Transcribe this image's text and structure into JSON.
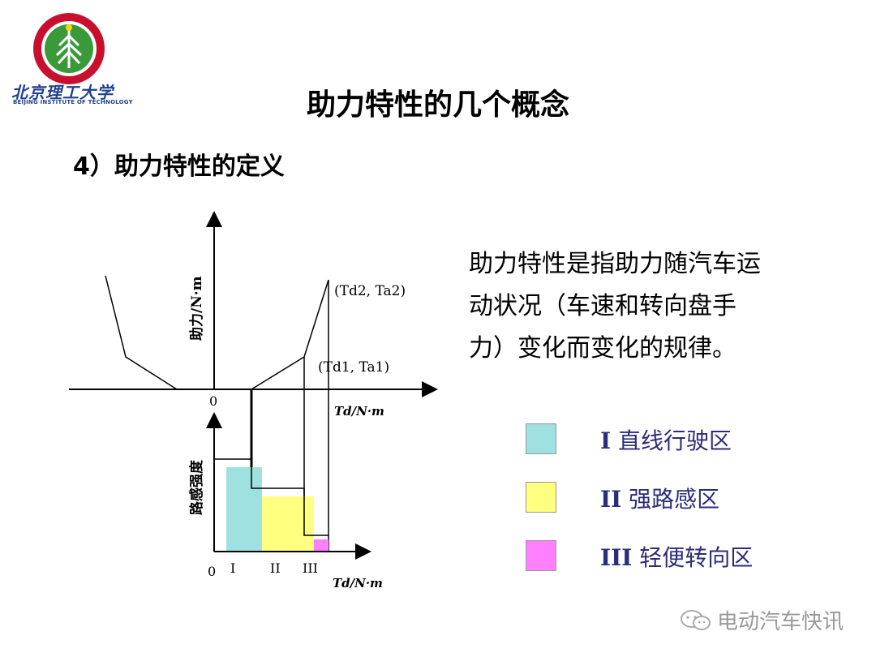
{
  "header": {
    "logo_name_cn": "北京理工大学",
    "logo_name_en": "BEIJING INSTITUTE OF TECHNOLOGY"
  },
  "title": "助力特性的几个概念",
  "subtitle": "4）助力特性的定义",
  "description_lines": [
    "助力特性是指助力随汽车运",
    "动状况（车速和转向盘手",
    "力）变化而变化的规律。"
  ],
  "diagram": {
    "upper_y_label": "助力/N·m",
    "upper_x_label": "Td/N·m",
    "lower_y_label": "路感强度",
    "lower_x_label": "Td/N·m",
    "origin_label": "0",
    "point_label_1": "(Td1, Ta1)",
    "point_label_2": "(Td2, Ta2)",
    "zone_label_1": "I",
    "zone_label_2": "II",
    "zone_label_3": "III"
  },
  "legend": [
    {
      "roman": "I",
      "label": "直线行驶区",
      "color": "#9fe0e0"
    },
    {
      "roman": "II",
      "label": "强路感区",
      "color": "#ffff80"
    },
    {
      "roman": "III",
      "label": "轻便转向区",
      "color": "#ff80ff"
    }
  ],
  "watermark": "电动汽车快讯"
}
